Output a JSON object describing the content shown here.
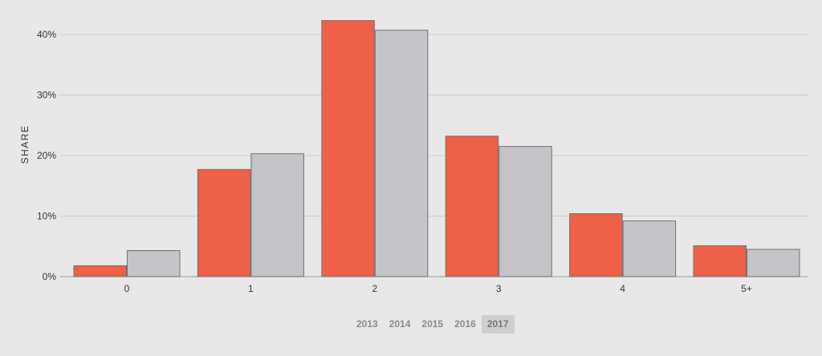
{
  "chart_data": {
    "type": "bar",
    "categories": [
      "0",
      "1",
      "2",
      "3",
      "4",
      "5+"
    ],
    "series": [
      {
        "values": [
          1.8,
          17.7,
          42.3,
          23.2,
          10.4,
          5.1
        ],
        "color": "#ef6048"
      },
      {
        "values": [
          4.3,
          20.3,
          40.7,
          21.5,
          9.2,
          4.5
        ],
        "color": "#c4c5c9"
      }
    ],
    "ylabel": "SHARE",
    "xlabel": "",
    "ylim": [
      0,
      40
    ],
    "yticks": [
      0,
      10,
      20,
      30,
      40
    ],
    "ytick_format": "percent",
    "grid": true
  },
  "year_selector": {
    "years": [
      "2013",
      "2014",
      "2015",
      "2016",
      "2017"
    ],
    "active": "2017"
  }
}
